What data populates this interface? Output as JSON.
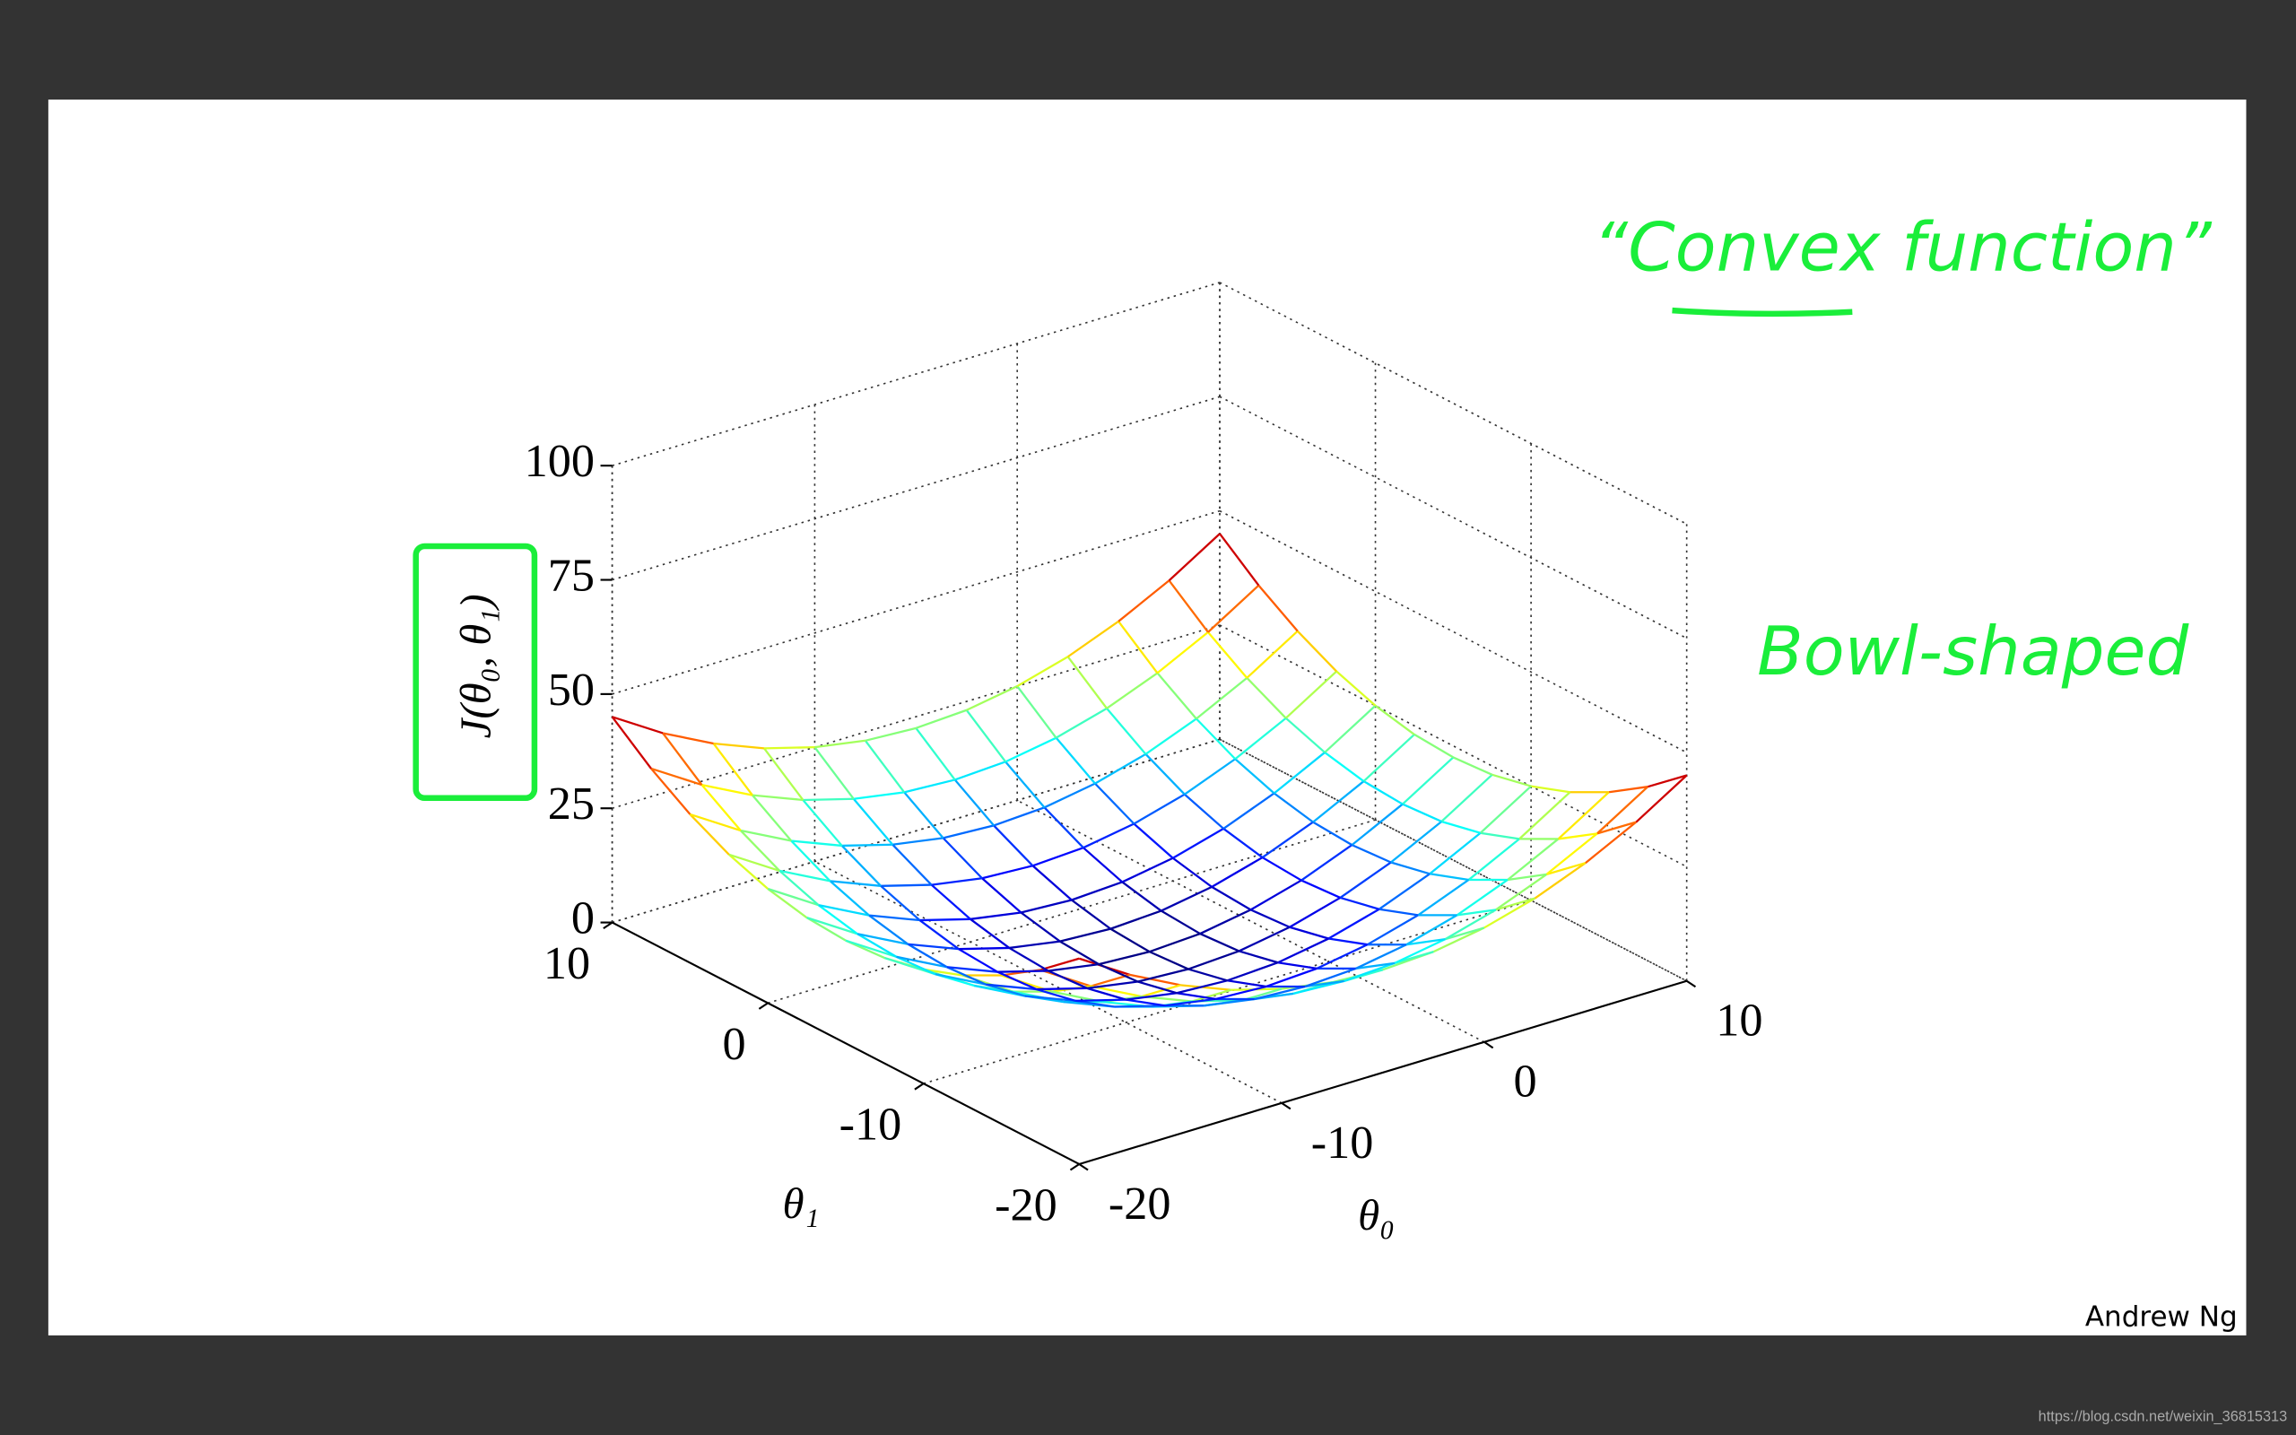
{
  "chart_data": {
    "type": "surface",
    "xlabel": "θ₀",
    "ylabel": "θ₁",
    "zlabel": "J(θ₀, θ₁)",
    "x": [
      -20,
      -17.5,
      -15,
      -12.5,
      -10,
      -7.5,
      -5,
      -2.5,
      0,
      2.5,
      5,
      7.5,
      10
    ],
    "y": [
      -20,
      -17.5,
      -15,
      -12.5,
      -10,
      -7.5,
      -5,
      -2.5,
      0,
      2.5,
      5,
      7.5,
      10
    ],
    "z": [
      [
        45,
        38.1,
        32.5,
        28.1,
        25,
        23.1,
        22.5,
        23.1,
        25,
        28.1,
        32.5,
        38.1,
        45
      ],
      [
        38.1,
        31.2,
        25.6,
        21.2,
        18.1,
        16.2,
        15.6,
        16.2,
        18.1,
        21.2,
        25.6,
        31.2,
        38.1
      ],
      [
        32.5,
        25.6,
        20,
        15.6,
        12.5,
        10.6,
        10,
        10.6,
        12.5,
        15.6,
        20,
        25.6,
        32.5
      ],
      [
        28.1,
        21.2,
        15.6,
        11.2,
        8.1,
        6.2,
        5.6,
        6.2,
        8.1,
        11.2,
        15.6,
        21.2,
        28.1
      ],
      [
        25,
        18.1,
        12.5,
        8.1,
        5,
        3.1,
        2.5,
        3.1,
        5,
        8.1,
        12.5,
        18.1,
        25
      ],
      [
        23.1,
        16.2,
        10.6,
        6.2,
        3.1,
        1.2,
        0.6,
        1.2,
        3.1,
        6.2,
        10.6,
        16.2,
        23.1
      ],
      [
        22.5,
        15.6,
        10,
        5.6,
        2.5,
        0.6,
        0,
        0.6,
        2.5,
        5.6,
        10,
        15.6,
        22.5
      ],
      [
        23.1,
        16.2,
        10.6,
        6.2,
        3.1,
        1.2,
        0.6,
        1.2,
        3.1,
        6.2,
        10.6,
        16.2,
        23.1
      ],
      [
        25,
        18.1,
        12.5,
        8.1,
        5,
        3.1,
        2.5,
        3.1,
        5,
        8.1,
        12.5,
        18.1,
        25
      ],
      [
        28.1,
        21.2,
        15.6,
        11.2,
        8.1,
        6.2,
        5.6,
        6.2,
        8.1,
        11.2,
        15.6,
        21.2,
        28.1
      ],
      [
        32.5,
        25.6,
        20,
        15.6,
        12.5,
        10.6,
        10,
        10.6,
        12.5,
        15.6,
        20,
        25.6,
        32.5
      ],
      [
        38.1,
        31.2,
        25.6,
        21.2,
        18.1,
        16.2,
        15.6,
        16.2,
        18.1,
        21.2,
        25.6,
        31.2,
        38.1
      ],
      [
        45,
        38.1,
        32.5,
        28.1,
        25,
        23.1,
        22.5,
        23.1,
        25,
        28.1,
        32.5,
        38.1,
        45
      ]
    ],
    "xlim": [
      -20,
      10
    ],
    "ylim": [
      -20,
      10
    ],
    "zlim": [
      0,
      100
    ],
    "xticks": [
      -20,
      -10,
      0,
      10
    ],
    "yticks": [
      -20,
      -10,
      0,
      10
    ],
    "zticks": [
      0,
      25,
      50,
      75,
      100
    ],
    "grid": true,
    "colormap": "jet",
    "annotations": [
      "“Convex function”",
      "Bowl-shaped"
    ]
  },
  "slide": {
    "author": "Andrew Ng",
    "watermark": "https://blog.csdn.net/weixin_36815313"
  }
}
